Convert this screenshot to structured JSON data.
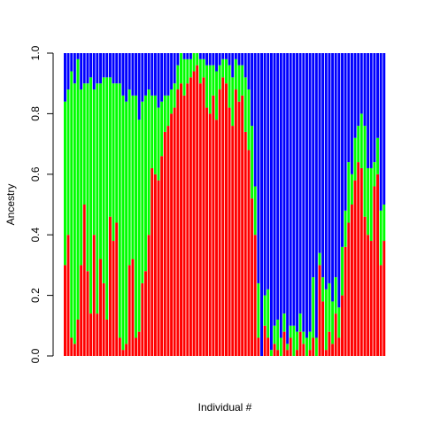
{
  "chart_data": {
    "type": "bar",
    "subtype": "stacked-proportion",
    "xlabel": "Individual #",
    "ylabel": "Ancestry",
    "ylim": [
      0,
      1
    ],
    "yticks": [
      "0.0",
      "0.2",
      "0.4",
      "0.6",
      "0.8",
      "1.0"
    ],
    "n_individuals": 100,
    "colors": {
      "red": "#ff0000",
      "green": "#00ff00",
      "blue": "#0000ff"
    },
    "series": [
      {
        "name": "",
        "color": "#ff0000",
        "values": [
          0.3,
          0.4,
          0.06,
          0.04,
          0.12,
          0.3,
          0.5,
          0.28,
          0.14,
          0.4,
          0.14,
          0.32,
          0.24,
          0.12,
          0.46,
          0.38,
          0.44,
          0.06,
          0.02,
          0.04,
          0.3,
          0.32,
          0.06,
          0.08,
          0.24,
          0.28,
          0.4,
          0.62,
          0.6,
          0.58,
          0.66,
          0.74,
          0.76,
          0.8,
          0.82,
          0.88,
          0.9,
          0.86,
          0.9,
          0.92,
          0.94,
          0.96,
          0.9,
          0.92,
          0.82,
          0.8,
          0.86,
          0.78,
          0.88,
          0.92,
          0.9,
          0.82,
          0.76,
          0.88,
          0.84,
          0.86,
          0.74,
          0.68,
          0.52,
          0.4,
          0.06,
          0.0,
          0.1,
          0.06,
          0.0,
          0.04,
          0.02,
          0.0,
          0.08,
          0.02,
          0.06,
          0.0,
          0.02,
          0.08,
          0.04,
          0.0,
          0.02,
          0.06,
          0.0,
          0.3,
          0.18,
          0.02,
          0.08,
          0.04,
          0.14,
          0.06,
          0.2,
          0.36,
          0.44,
          0.5,
          0.58,
          0.64,
          0.62,
          0.46,
          0.4,
          0.38,
          0.56,
          0.6,
          0.3,
          0.38
        ]
      },
      {
        "name": "",
        "color": "#00ff00",
        "values": [
          0.54,
          0.48,
          0.88,
          0.86,
          0.86,
          0.58,
          0.4,
          0.62,
          0.78,
          0.48,
          0.76,
          0.58,
          0.68,
          0.8,
          0.46,
          0.52,
          0.46,
          0.84,
          0.84,
          0.8,
          0.58,
          0.54,
          0.8,
          0.7,
          0.6,
          0.58,
          0.48,
          0.24,
          0.26,
          0.24,
          0.18,
          0.12,
          0.1,
          0.08,
          0.08,
          0.08,
          0.1,
          0.12,
          0.08,
          0.06,
          0.06,
          0.04,
          0.08,
          0.06,
          0.14,
          0.16,
          0.1,
          0.16,
          0.08,
          0.06,
          0.08,
          0.14,
          0.16,
          0.1,
          0.12,
          0.1,
          0.18,
          0.2,
          0.24,
          0.16,
          0.18,
          0.0,
          0.1,
          0.16,
          0.02,
          0.06,
          0.1,
          0.06,
          0.06,
          0.02,
          0.04,
          0.1,
          0.06,
          0.06,
          0.04,
          0.06,
          0.06,
          0.2,
          0.06,
          0.04,
          0.08,
          0.2,
          0.16,
          0.14,
          0.12,
          0.1,
          0.16,
          0.12,
          0.2,
          0.1,
          0.14,
          0.12,
          0.18,
          0.3,
          0.22,
          0.24,
          0.08,
          0.12,
          0.18,
          0.12
        ]
      },
      {
        "name": "",
        "color": "#0000ff",
        "values": [
          0.16,
          0.12,
          0.06,
          0.1,
          0.02,
          0.12,
          0.1,
          0.1,
          0.08,
          0.12,
          0.1,
          0.1,
          0.08,
          0.08,
          0.08,
          0.1,
          0.1,
          0.1,
          0.14,
          0.16,
          0.12,
          0.14,
          0.14,
          0.22,
          0.16,
          0.14,
          0.12,
          0.14,
          0.14,
          0.18,
          0.16,
          0.14,
          0.14,
          0.12,
          0.1,
          0.04,
          0.0,
          0.02,
          0.02,
          0.02,
          0.0,
          0.0,
          0.02,
          0.02,
          0.04,
          0.04,
          0.04,
          0.06,
          0.04,
          0.02,
          0.02,
          0.04,
          0.08,
          0.02,
          0.04,
          0.04,
          0.08,
          0.12,
          0.24,
          0.44,
          0.76,
          1.0,
          0.8,
          0.78,
          0.98,
          0.9,
          0.88,
          0.94,
          0.86,
          0.96,
          0.9,
          0.9,
          0.92,
          0.86,
          0.92,
          0.94,
          0.92,
          0.74,
          0.94,
          0.66,
          0.74,
          0.78,
          0.76,
          0.82,
          0.74,
          0.84,
          0.64,
          0.52,
          0.36,
          0.4,
          0.28,
          0.24,
          0.2,
          0.24,
          0.38,
          0.38,
          0.36,
          0.28,
          0.52,
          0.5
        ]
      }
    ]
  }
}
